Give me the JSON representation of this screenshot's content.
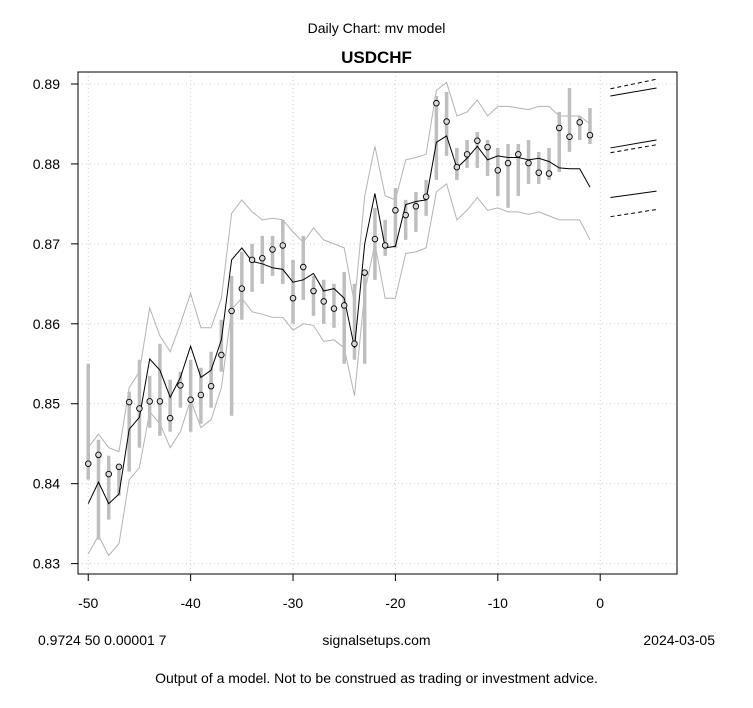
{
  "chart_data": {
    "type": "line",
    "subtitle": "Daily Chart: mv model",
    "title": "USDCHF",
    "xlim": [
      -51,
      7.5
    ],
    "ylim": [
      0.8287,
      0.8915
    ],
    "x_ticks": [
      -50,
      -40,
      -30,
      -20,
      -10,
      0
    ],
    "y_ticks": [
      0.83,
      0.84,
      0.85,
      0.86,
      0.87,
      0.88,
      0.89
    ],
    "grid": true,
    "colors": {
      "model": "#000000",
      "band": "#b4b4b4",
      "range_bar": "#bebebe",
      "point_fill": "#d8d8d8"
    },
    "closes": [
      [
        -50,
        0.8425
      ],
      [
        -49,
        0.8436
      ],
      [
        -48,
        0.8412
      ],
      [
        -47,
        0.8421
      ],
      [
        -46,
        0.8502
      ],
      [
        -45,
        0.8494
      ],
      [
        -44,
        0.8503
      ],
      [
        -43,
        0.8503
      ],
      [
        -42,
        0.8482
      ],
      [
        -41,
        0.8523
      ],
      [
        -40,
        0.8505
      ],
      [
        -39,
        0.8511
      ],
      [
        -38,
        0.8522
      ],
      [
        -37,
        0.8561
      ],
      [
        -36,
        0.8616
      ],
      [
        -35,
        0.8644
      ],
      [
        -34,
        0.868
      ],
      [
        -33,
        0.8682
      ],
      [
        -32,
        0.8693
      ],
      [
        -31,
        0.8698
      ],
      [
        -30,
        0.8632
      ],
      [
        -29,
        0.8671
      ],
      [
        -28,
        0.8641
      ],
      [
        -27,
        0.8628
      ],
      [
        -26,
        0.8619
      ],
      [
        -25,
        0.8623
      ],
      [
        -24,
        0.8575
      ],
      [
        -23,
        0.8664
      ],
      [
        -22,
        0.8706
      ],
      [
        -21,
        0.8698
      ],
      [
        -20,
        0.8742
      ],
      [
        -19,
        0.8736
      ],
      [
        -18,
        0.8747
      ],
      [
        -17,
        0.8759
      ],
      [
        -16,
        0.8876
      ],
      [
        -15,
        0.8853
      ],
      [
        -14,
        0.8796
      ],
      [
        -13,
        0.8812
      ],
      [
        -12,
        0.8829
      ],
      [
        -11,
        0.8821
      ],
      [
        -10,
        0.8792
      ],
      [
        -9,
        0.8801
      ],
      [
        -8,
        0.8812
      ],
      [
        -7,
        0.8801
      ],
      [
        -6,
        0.8789
      ],
      [
        -5,
        0.8788
      ],
      [
        -4,
        0.8845
      ],
      [
        -3,
        0.8834
      ],
      [
        -2,
        0.8852
      ],
      [
        -1,
        0.8836
      ]
    ],
    "ranges": [
      [
        -50,
        0.8405,
        0.855
      ],
      [
        -49,
        0.833,
        0.8455
      ],
      [
        -48,
        0.8355,
        0.8435
      ],
      [
        -47,
        0.8385,
        0.8425
      ],
      [
        -46,
        0.8415,
        0.8515
      ],
      [
        -45,
        0.8445,
        0.8555
      ],
      [
        -44,
        0.847,
        0.8535
      ],
      [
        -43,
        0.846,
        0.8575
      ],
      [
        -42,
        0.8465,
        0.853
      ],
      [
        -41,
        0.8495,
        0.854
      ],
      [
        -40,
        0.8465,
        0.8555
      ],
      [
        -39,
        0.8475,
        0.8545
      ],
      [
        -38,
        0.8495,
        0.8565
      ],
      [
        -37,
        0.854,
        0.8605
      ],
      [
        -36,
        0.8485,
        0.866
      ],
      [
        -35,
        0.8605,
        0.869
      ],
      [
        -34,
        0.864,
        0.87
      ],
      [
        -33,
        0.865,
        0.871
      ],
      [
        -32,
        0.866,
        0.871
      ],
      [
        -31,
        0.865,
        0.873
      ],
      [
        -30,
        0.86,
        0.868
      ],
      [
        -29,
        0.863,
        0.871
      ],
      [
        -28,
        0.861,
        0.866
      ],
      [
        -27,
        0.86,
        0.8655
      ],
      [
        -26,
        0.8595,
        0.865
      ],
      [
        -25,
        0.855,
        0.8665
      ],
      [
        -24,
        0.8555,
        0.865
      ],
      [
        -23,
        0.855,
        0.8665
      ],
      [
        -22,
        0.8655,
        0.8745
      ],
      [
        -21,
        0.8685,
        0.873
      ],
      [
        -20,
        0.8695,
        0.877
      ],
      [
        -19,
        0.8705,
        0.8755
      ],
      [
        -18,
        0.8715,
        0.8765
      ],
      [
        -17,
        0.8735,
        0.878
      ],
      [
        -16,
        0.878,
        0.8885
      ],
      [
        -15,
        0.881,
        0.889
      ],
      [
        -14,
        0.878,
        0.882
      ],
      [
        -13,
        0.8795,
        0.883
      ],
      [
        -12,
        0.8795,
        0.884
      ],
      [
        -11,
        0.8785,
        0.883
      ],
      [
        -10,
        0.876,
        0.882
      ],
      [
        -9,
        0.8745,
        0.8825
      ],
      [
        -8,
        0.876,
        0.8825
      ],
      [
        -7,
        0.8775,
        0.883
      ],
      [
        -6,
        0.8775,
        0.8815
      ],
      [
        -5,
        0.878,
        0.882
      ],
      [
        -4,
        0.879,
        0.8865
      ],
      [
        -3,
        0.8815,
        0.8895
      ],
      [
        -2,
        0.883,
        0.886
      ],
      [
        -1,
        0.8825,
        0.887
      ]
    ],
    "model_line": [
      [
        -50,
        0.8375
      ],
      [
        -49,
        0.8402
      ],
      [
        -48,
        0.8375
      ],
      [
        -47,
        0.8387
      ],
      [
        -46,
        0.8468
      ],
      [
        -45,
        0.8483
      ],
      [
        -44,
        0.8556
      ],
      [
        -43,
        0.8542
      ],
      [
        -42,
        0.8508
      ],
      [
        -41,
        0.8533
      ],
      [
        -40,
        0.8572
      ],
      [
        -39,
        0.8533
      ],
      [
        -38,
        0.8542
      ],
      [
        -37,
        0.858
      ],
      [
        -36,
        0.868
      ],
      [
        -35,
        0.8695
      ],
      [
        -34,
        0.8678
      ],
      [
        -33,
        0.8675
      ],
      [
        -32,
        0.867
      ],
      [
        -31,
        0.8668
      ],
      [
        -30,
        0.8652
      ],
      [
        -29,
        0.8655
      ],
      [
        -28,
        0.8663
      ],
      [
        -27,
        0.8641
      ],
      [
        -26,
        0.8644
      ],
      [
        -25,
        0.8632
      ],
      [
        -24,
        0.857
      ],
      [
        -23,
        0.87
      ],
      [
        -22,
        0.8763
      ],
      [
        -21,
        0.8695
      ],
      [
        -20,
        0.8697
      ],
      [
        -19,
        0.8749
      ],
      [
        -18,
        0.8753
      ],
      [
        -17,
        0.8755
      ],
      [
        -16,
        0.8827
      ],
      [
        -15,
        0.8835
      ],
      [
        -14,
        0.8795
      ],
      [
        -13,
        0.8807
      ],
      [
        -12,
        0.8822
      ],
      [
        -11,
        0.8805
      ],
      [
        -10,
        0.881
      ],
      [
        -9,
        0.8808
      ],
      [
        -8,
        0.8808
      ],
      [
        -7,
        0.8805
      ],
      [
        -6,
        0.8807
      ],
      [
        -5,
        0.8803
      ],
      [
        -4,
        0.8795
      ],
      [
        -3,
        0.8794
      ],
      [
        -2,
        0.8794
      ],
      [
        -1,
        0.8771
      ]
    ],
    "band_upper": [
      [
        -50,
        0.8445
      ],
      [
        -49,
        0.8462
      ],
      [
        -48,
        0.8445
      ],
      [
        -47,
        0.844
      ],
      [
        -46,
        0.852
      ],
      [
        -45,
        0.854
      ],
      [
        -44,
        0.862
      ],
      [
        -43,
        0.8585
      ],
      [
        -42,
        0.8565
      ],
      [
        -41,
        0.86
      ],
      [
        -40,
        0.8638
      ],
      [
        -39,
        0.8595
      ],
      [
        -38,
        0.8595
      ],
      [
        -37,
        0.8632
      ],
      [
        -36,
        0.8738
      ],
      [
        -35,
        0.8755
      ],
      [
        -34,
        0.874
      ],
      [
        -33,
        0.873
      ],
      [
        -32,
        0.8732
      ],
      [
        -31,
        0.873
      ],
      [
        -30,
        0.8715
      ],
      [
        -29,
        0.8702
      ],
      [
        -28,
        0.872
      ],
      [
        -27,
        0.8705
      ],
      [
        -26,
        0.87
      ],
      [
        -25,
        0.8695
      ],
      [
        -24,
        0.8625
      ],
      [
        -23,
        0.876
      ],
      [
        -22,
        0.8822
      ],
      [
        -21,
        0.876
      ],
      [
        -20,
        0.8755
      ],
      [
        -19,
        0.8805
      ],
      [
        -18,
        0.8808
      ],
      [
        -17,
        0.8812
      ],
      [
        -16,
        0.8892
      ],
      [
        -15,
        0.8902
      ],
      [
        -14,
        0.886
      ],
      [
        -13,
        0.8865
      ],
      [
        -12,
        0.888
      ],
      [
        -11,
        0.886
      ],
      [
        -10,
        0.8872
      ],
      [
        -9,
        0.8872
      ],
      [
        -8,
        0.887
      ],
      [
        -7,
        0.8868
      ],
      [
        -6,
        0.8872
      ],
      [
        -5,
        0.8872
      ],
      [
        -4,
        0.886
      ],
      [
        -3,
        0.886
      ],
      [
        -2,
        0.886
      ],
      [
        -1,
        0.885
      ]
    ],
    "band_lower": [
      [
        -50,
        0.8312
      ],
      [
        -49,
        0.8335
      ],
      [
        -48,
        0.831
      ],
      [
        -47,
        0.8325
      ],
      [
        -46,
        0.8405
      ],
      [
        -45,
        0.842
      ],
      [
        -44,
        0.849
      ],
      [
        -43,
        0.8475
      ],
      [
        -42,
        0.8445
      ],
      [
        -41,
        0.8465
      ],
      [
        -40,
        0.8505
      ],
      [
        -39,
        0.847
      ],
      [
        -38,
        0.848
      ],
      [
        -37,
        0.852
      ],
      [
        -36,
        0.8618
      ],
      [
        -35,
        0.8632
      ],
      [
        -34,
        0.8615
      ],
      [
        -33,
        0.8612
      ],
      [
        -32,
        0.8608
      ],
      [
        -31,
        0.8608
      ],
      [
        -30,
        0.8592
      ],
      [
        -29,
        0.86
      ],
      [
        -28,
        0.8598
      ],
      [
        -27,
        0.8578
      ],
      [
        -26,
        0.858
      ],
      [
        -25,
        0.857
      ],
      [
        -24,
        0.851
      ],
      [
        -23,
        0.864
      ],
      [
        -22,
        0.87
      ],
      [
        -21,
        0.8632
      ],
      [
        -20,
        0.8632
      ],
      [
        -19,
        0.8688
      ],
      [
        -18,
        0.869
      ],
      [
        -17,
        0.8695
      ],
      [
        -16,
        0.8765
      ],
      [
        -15,
        0.8775
      ],
      [
        -14,
        0.873
      ],
      [
        -13,
        0.8742
      ],
      [
        -12,
        0.8758
      ],
      [
        -11,
        0.8742
      ],
      [
        -10,
        0.8745
      ],
      [
        -9,
        0.874
      ],
      [
        -8,
        0.874
      ],
      [
        -7,
        0.8737
      ],
      [
        -6,
        0.874
      ],
      [
        -5,
        0.8735
      ],
      [
        -4,
        0.873
      ],
      [
        -3,
        0.873
      ],
      [
        -2,
        0.873
      ],
      [
        -1,
        0.8705
      ]
    ],
    "forecast_solid": [
      [
        [
          1,
          0.8885
        ],
        [
          5.5,
          0.8895
        ]
      ],
      [
        [
          1,
          0.882
        ],
        [
          5.5,
          0.883
        ]
      ],
      [
        [
          1,
          0.8758
        ],
        [
          5.5,
          0.8766
        ]
      ]
    ],
    "forecast_dashed": [
      [
        [
          1,
          0.8894
        ],
        [
          5.5,
          0.8906
        ]
      ],
      [
        [
          1,
          0.8814
        ],
        [
          5.5,
          0.8824
        ]
      ],
      [
        [
          1,
          0.8734
        ],
        [
          5.5,
          0.8743
        ]
      ]
    ]
  },
  "footer": {
    "params": "0.9724 50 0.00001 7",
    "source": "signalsetups.com",
    "date": "2024-03-05",
    "disclaimer": "Output of a model.  Not to be construed as trading or investment advice."
  }
}
